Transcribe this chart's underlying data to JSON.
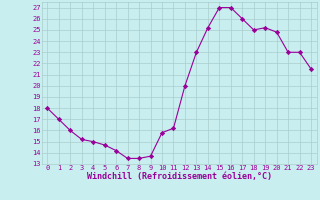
{
  "x": [
    0,
    1,
    2,
    3,
    4,
    5,
    6,
    7,
    8,
    9,
    10,
    11,
    12,
    13,
    14,
    15,
    16,
    17,
    18,
    19,
    20,
    21,
    22,
    23
  ],
  "y": [
    18,
    17,
    16,
    15.2,
    15,
    14.7,
    14.2,
    13.5,
    13.5,
    13.7,
    15.8,
    16.2,
    20,
    23,
    25.2,
    27,
    27,
    26,
    25,
    25.2,
    24.8,
    23,
    23,
    21.5
  ],
  "line_color": "#990099",
  "marker": "D",
  "marker_size": 2.2,
  "bg_color": "#c8eef0",
  "grid_color": "#aacccc",
  "xlabel": "Windchill (Refroidissement éolien,°C)",
  "ylim": [
    13,
    27.5
  ],
  "xlim": [
    -0.5,
    23.5
  ],
  "yticks": [
    13,
    14,
    15,
    16,
    17,
    18,
    19,
    20,
    21,
    22,
    23,
    24,
    25,
    26,
    27
  ],
  "xticks": [
    0,
    1,
    2,
    3,
    4,
    5,
    6,
    7,
    8,
    9,
    10,
    11,
    12,
    13,
    14,
    15,
    16,
    17,
    18,
    19,
    20,
    21,
    22,
    23
  ],
  "tick_color": "#990099",
  "label_color": "#990099",
  "tick_fontsize": 5.0,
  "xlabel_fontsize": 6.0
}
